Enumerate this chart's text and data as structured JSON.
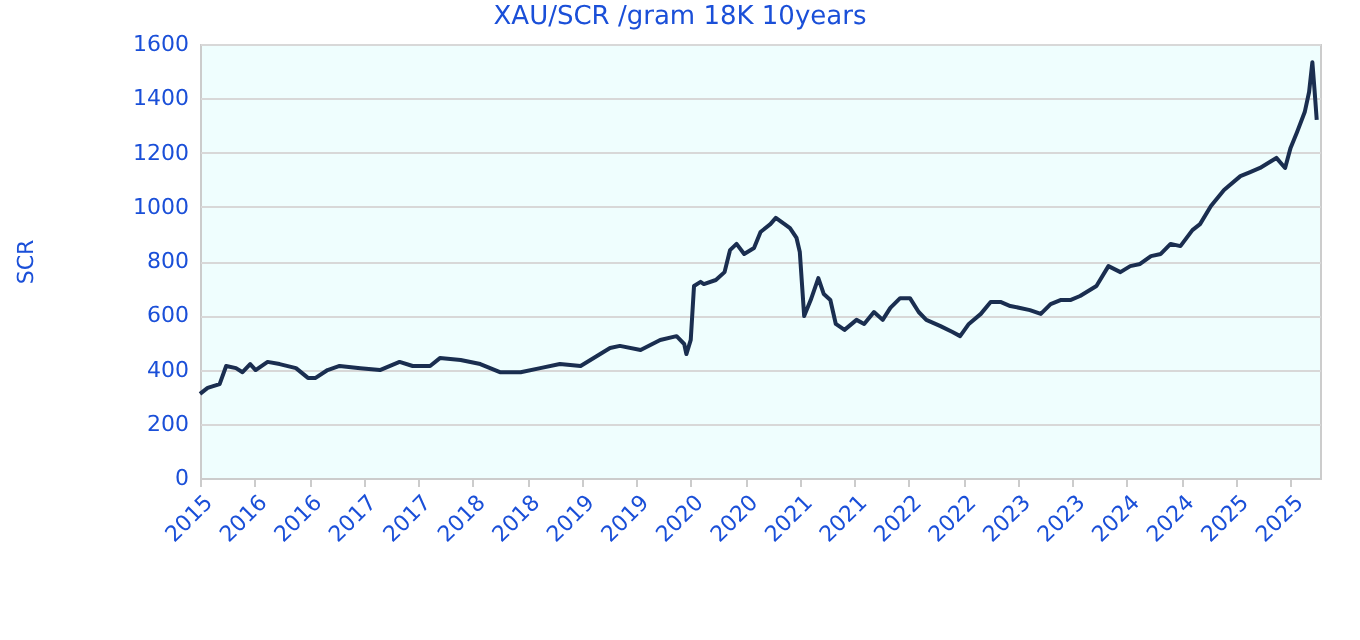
{
  "chart_data": {
    "type": "line",
    "title": "XAU/SCR /gram 18K 10years",
    "ylabel": "SCR",
    "x": [
      2015.5,
      2015.57,
      2015.68,
      2015.74,
      2015.83,
      2015.89,
      2015.96,
      2016.01,
      2016.12,
      2016.23,
      2016.38,
      2016.49,
      2016.56,
      2016.67,
      2016.78,
      2016.97,
      2017.15,
      2017.33,
      2017.45,
      2017.61,
      2017.7,
      2017.89,
      2018.07,
      2018.25,
      2018.44,
      2018.62,
      2018.8,
      2018.99,
      2019.17,
      2019.26,
      2019.35,
      2019.54,
      2019.72,
      2019.87,
      2019.94,
      2019.96,
      2020.0,
      2020.03,
      2020.09,
      2020.12,
      2020.23,
      2020.31,
      2020.36,
      2020.42,
      2020.49,
      2020.58,
      2020.64,
      2020.73,
      2020.78,
      2020.86,
      2020.91,
      2020.97,
      2021.0,
      2021.04,
      2021.1,
      2021.17,
      2021.22,
      2021.28,
      2021.33,
      2021.41,
      2021.52,
      2021.59,
      2021.68,
      2021.76,
      2021.83,
      2021.92,
      2022.01,
      2022.09,
      2022.16,
      2022.29,
      2022.4,
      2022.47,
      2022.55,
      2022.66,
      2022.75,
      2022.84,
      2022.93,
      2023.02,
      2023.11,
      2023.21,
      2023.3,
      2023.39,
      2023.48,
      2023.57,
      2023.72,
      2023.83,
      2023.94,
      2024.03,
      2024.12,
      2024.22,
      2024.31,
      2024.4,
      2024.49,
      2024.6,
      2024.67,
      2024.77,
      2024.89,
      2025.04,
      2025.13,
      2025.22,
      2025.37,
      2025.45,
      2025.5,
      2025.56,
      2025.63,
      2025.67,
      2025.7,
      2025.72,
      2025.74
    ],
    "series": [
      {
        "color": "#1a2e50",
        "values": [
          310,
          332,
          346,
          413,
          405,
          390,
          420,
          398,
          428,
          420,
          405,
          369,
          369,
          398,
          413,
          405,
          398,
          428,
          413,
          413,
          442,
          435,
          420,
          390,
          390,
          405,
          420,
          413,
          457,
          479,
          487,
          472,
          509,
          523,
          494,
          457,
          509,
          708,
          723,
          715,
          730,
          759,
          840,
          863,
          826,
          848,
          907,
          936,
          959,
          936,
          921,
          885,
          833,
          597,
          656,
          737,
          678,
          656,
          568,
          546,
          583,
          568,
          612,
          583,
          627,
          663,
          663,
          612,
          583,
          560,
          538,
          523,
          568,
          605,
          649,
          649,
          634,
          627,
          619,
          605,
          641,
          656,
          656,
          671,
          708,
          781,
          759,
          781,
          789,
          818,
          826,
          863,
          855,
          914,
          936,
          1003,
          1062,
          1113,
          1128,
          1143,
          1180,
          1143,
          1217,
          1276,
          1349,
          1423,
          1533,
          1430,
          1320
        ]
      }
    ],
    "xlim": [
      2015.5,
      2025.77
    ],
    "xticks": [
      {
        "value": 2015.5,
        "label": "2015"
      },
      {
        "value": 2016,
        "label": "2016"
      },
      {
        "value": 2016.5,
        "label": "2016"
      },
      {
        "value": 2017,
        "label": "2017"
      },
      {
        "value": 2017.5,
        "label": "2017"
      },
      {
        "value": 2018,
        "label": "2018"
      },
      {
        "value": 2018.5,
        "label": "2018"
      },
      {
        "value": 2019,
        "label": "2019"
      },
      {
        "value": 2019.5,
        "label": "2019"
      },
      {
        "value": 2020,
        "label": "2020"
      },
      {
        "value": 2020.5,
        "label": "2020"
      },
      {
        "value": 2021,
        "label": "2021"
      },
      {
        "value": 2021.5,
        "label": "2021"
      },
      {
        "value": 2022,
        "label": "2022"
      },
      {
        "value": 2022.5,
        "label": "2022"
      },
      {
        "value": 2023,
        "label": "2023"
      },
      {
        "value": 2023.5,
        "label": "2023"
      },
      {
        "value": 2024,
        "label": "2024"
      },
      {
        "value": 2024.5,
        "label": "2024"
      },
      {
        "value": 2025,
        "label": "2025"
      },
      {
        "value": 2025.5,
        "label": "2025"
      }
    ],
    "ylim": [
      0,
      1600
    ],
    "yticks": [
      0,
      200,
      400,
      600,
      800,
      1000,
      1200,
      1400,
      1600
    ],
    "grid": "y"
  }
}
